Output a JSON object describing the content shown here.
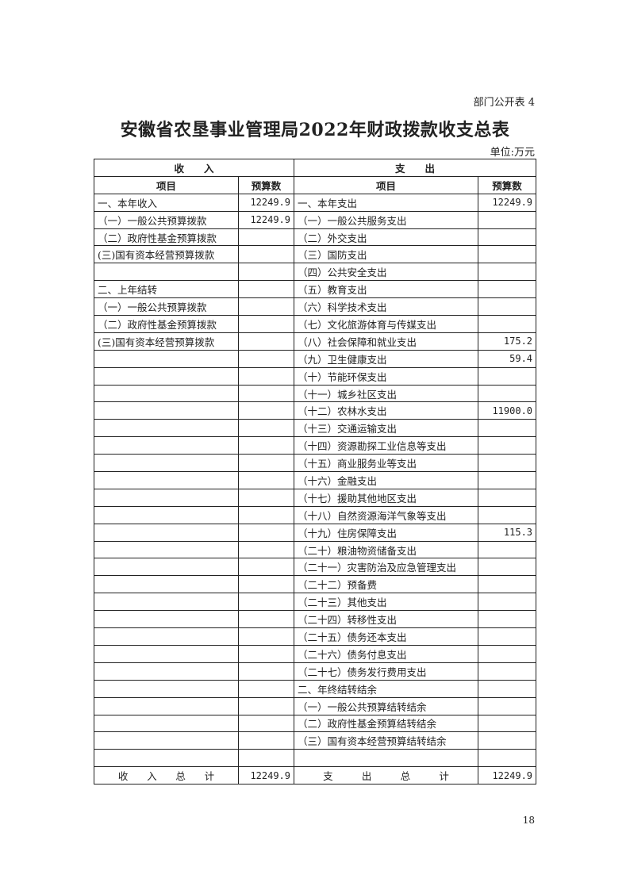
{
  "form_label": "部门公开表 4",
  "title": "安徽省农垦事业管理局2022年财政拨款收支总表",
  "unit": "单位:万元",
  "header": {
    "income": "收　　入",
    "expense": "支　　出",
    "item": "项目",
    "budget": "预算数"
  },
  "rows": [
    [
      "一、本年收入",
      "12249.9",
      "一、本年支出",
      "12249.9"
    ],
    [
      "（一）一般公共预算拨款",
      "12249.9",
      "（一）一般公共服务支出",
      ""
    ],
    [
      "（二）政府性基金预算拨款",
      "",
      "（二）外交支出",
      ""
    ],
    [
      "(三)国有资本经营预算拨款",
      "",
      "（三）国防支出",
      ""
    ],
    [
      "",
      "",
      "（四）公共安全支出",
      ""
    ],
    [
      "二、上年结转",
      "",
      "（五）教育支出",
      ""
    ],
    [
      "（一）一般公共预算拨款",
      "",
      "（六）科学技术支出",
      ""
    ],
    [
      "（二）政府性基金预算拨款",
      "",
      "（七）文化旅游体育与传媒支出",
      ""
    ],
    [
      "(三)国有资本经营预算拨款",
      "",
      "（八）社会保障和就业支出",
      "175.2"
    ],
    [
      "",
      "",
      "（九）卫生健康支出",
      "59.4"
    ],
    [
      "",
      "",
      "（十）节能环保支出",
      ""
    ],
    [
      "",
      "",
      "（十一）城乡社区支出",
      ""
    ],
    [
      "",
      "",
      "（十二）农林水支出",
      "11900.0"
    ],
    [
      "",
      "",
      "（十三）交通运输支出",
      ""
    ],
    [
      "",
      "",
      "（十四）资源勘探工业信息等支出",
      ""
    ],
    [
      "",
      "",
      "（十五）商业服务业等支出",
      ""
    ],
    [
      "",
      "",
      "（十六）金融支出",
      ""
    ],
    [
      "",
      "",
      "（十七）援助其他地区支出",
      ""
    ],
    [
      "",
      "",
      "（十八）自然资源海洋气象等支出",
      ""
    ],
    [
      "",
      "",
      "（十九）住房保障支出",
      "115.3"
    ],
    [
      "",
      "",
      "（二十）粮油物资储备支出",
      ""
    ],
    [
      "",
      "",
      "（二十一）灾害防治及应急管理支出",
      ""
    ],
    [
      "",
      "",
      "（二十二）预备费",
      ""
    ],
    [
      "",
      "",
      "（二十三）其他支出",
      ""
    ],
    [
      "",
      "",
      "（二十四）转移性支出",
      ""
    ],
    [
      "",
      "",
      "（二十五）债务还本支出",
      ""
    ],
    [
      "",
      "",
      "（二十六）债务付息支出",
      ""
    ],
    [
      "",
      "",
      "（二十七）债务发行费用支出",
      ""
    ],
    [
      "",
      "",
      "二、年终结转结余",
      ""
    ],
    [
      "",
      "",
      "（一）一般公共预算结转结余",
      ""
    ],
    [
      "",
      "",
      "（二）政府性基金预算结转结余",
      ""
    ],
    [
      "",
      "",
      "（三）国有资本经营预算结转结余",
      ""
    ],
    [
      "",
      "",
      "",
      ""
    ]
  ],
  "totals": {
    "income_label": [
      "收",
      "入",
      "总",
      "计"
    ],
    "income_value": "12249.9",
    "expense_label": [
      "支",
      "出",
      "总",
      "计"
    ],
    "expense_value": "12249.9"
  },
  "page_number": "18"
}
